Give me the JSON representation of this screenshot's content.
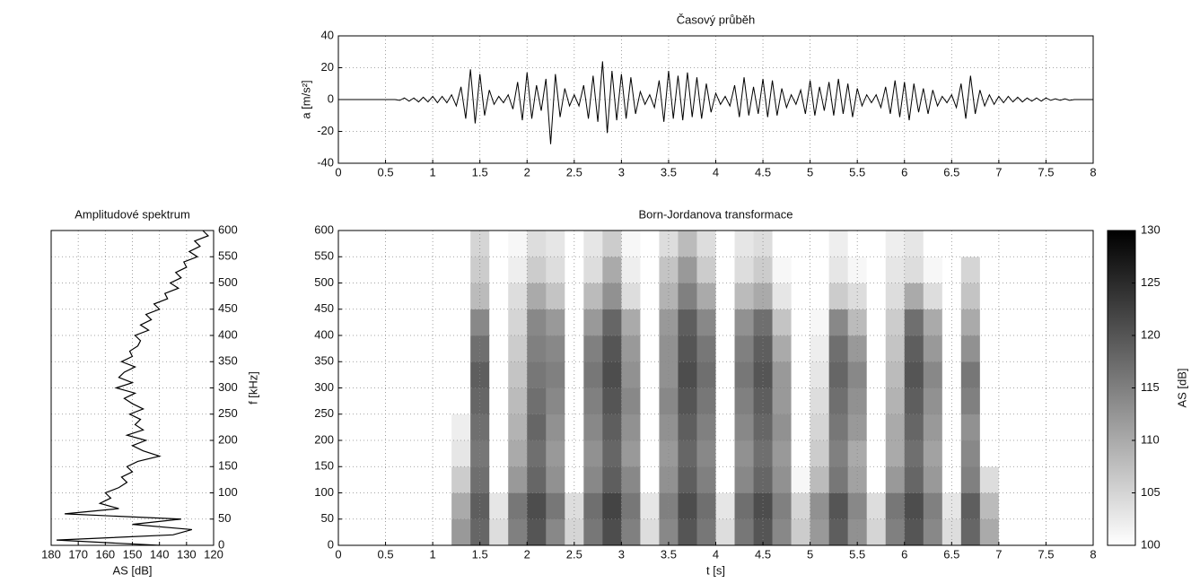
{
  "chart_data": [
    {
      "type": "line",
      "title": "Časový průběh",
      "y_label": "a [m/s²]",
      "color": "#000000",
      "grid": true,
      "xlim": [
        0,
        8
      ],
      "xticks": [
        0,
        0.5,
        1,
        1.5,
        2,
        2.5,
        3,
        3.5,
        4,
        4.5,
        5,
        5.5,
        6,
        6.5,
        7,
        7.5,
        8
      ],
      "ylim": [
        -40,
        40
      ],
      "yticks": [
        -40,
        -20,
        0,
        20,
        40
      ],
      "x": [
        0,
        0.05,
        0.1,
        0.15,
        0.2,
        0.25,
        0.3,
        0.35,
        0.4,
        0.45,
        0.5,
        0.55,
        0.6,
        0.65,
        0.7,
        0.75,
        0.8,
        0.85,
        0.9,
        0.95,
        1,
        1.05,
        1.1,
        1.15,
        1.2,
        1.25,
        1.3,
        1.35,
        1.4,
        1.45,
        1.5,
        1.55,
        1.6,
        1.65,
        1.7,
        1.75,
        1.8,
        1.85,
        1.9,
        1.95,
        2,
        2.05,
        2.1,
        2.15,
        2.2,
        2.25,
        2.3,
        2.35,
        2.4,
        2.45,
        2.5,
        2.55,
        2.6,
        2.65,
        2.7,
        2.75,
        2.8,
        2.85,
        2.9,
        2.95,
        3,
        3.05,
        3.1,
        3.15,
        3.2,
        3.25,
        3.3,
        3.35,
        3.4,
        3.45,
        3.5,
        3.55,
        3.6,
        3.65,
        3.7,
        3.75,
        3.8,
        3.85,
        3.9,
        3.95,
        4,
        4.05,
        4.1,
        4.15,
        4.2,
        4.25,
        4.3,
        4.35,
        4.4,
        4.45,
        4.5,
        4.55,
        4.6,
        4.65,
        4.7,
        4.75,
        4.8,
        4.85,
        4.9,
        4.95,
        5,
        5.05,
        5.1,
        5.15,
        5.2,
        5.25,
        5.3,
        5.35,
        5.4,
        5.45,
        5.5,
        5.55,
        5.6,
        5.65,
        5.7,
        5.75,
        5.8,
        5.85,
        5.9,
        5.95,
        6,
        6.05,
        6.1,
        6.15,
        6.2,
        6.25,
        6.3,
        6.35,
        6.4,
        6.45,
        6.5,
        6.55,
        6.6,
        6.65,
        6.7,
        6.75,
        6.8,
        6.85,
        6.9,
        6.95,
        7,
        7.05,
        7.1,
        7.15,
        7.2,
        7.25,
        7.3,
        7.35,
        7.4,
        7.45,
        7.5,
        7.55,
        7.6,
        7.65,
        7.7,
        7.75,
        7.8,
        7.85,
        7.9,
        7.95,
        8
      ],
      "values": [
        0,
        0,
        0,
        0,
        0,
        0,
        0,
        0,
        0,
        0,
        0,
        0,
        0,
        -0.5,
        1,
        -1,
        1,
        -1.5,
        1.5,
        -1.5,
        2,
        -2,
        2,
        -2,
        3,
        -4,
        8,
        -12,
        19,
        -15,
        16,
        -10,
        6,
        -3,
        2,
        -2,
        3,
        -6,
        11,
        -13,
        17,
        -12,
        9,
        -7,
        13,
        -28,
        16,
        -11,
        7,
        -4,
        3,
        -4,
        9,
        -12,
        15,
        -14,
        24,
        -21,
        18,
        -13,
        16,
        -12,
        14,
        -9,
        5,
        -3,
        3,
        -5,
        12,
        -14,
        18,
        -12,
        15,
        -13,
        17,
        -11,
        14,
        -12,
        10,
        -8,
        4,
        -3,
        2,
        -4,
        9,
        -11,
        14,
        -10,
        8,
        -9,
        13,
        -11,
        12,
        -10,
        7,
        -5,
        3,
        -3,
        6,
        -9,
        12,
        -10,
        8,
        -7,
        11,
        -10,
        13,
        -9,
        10,
        -11,
        7,
        -4,
        3,
        -2,
        3,
        -5,
        8,
        -9,
        12,
        -11,
        11,
        -13,
        10,
        -8,
        7,
        -9,
        6,
        -4,
        2,
        -2,
        3,
        -5,
        10,
        -12,
        15,
        -9,
        6,
        -4,
        3,
        -3,
        2,
        -2,
        2,
        -1.5,
        1.5,
        -1.5,
        1,
        -1,
        1,
        -1,
        1,
        -0.5,
        0.5,
        -0.5,
        0.5,
        -0.5,
        0,
        0,
        0,
        0,
        0
      ]
    },
    {
      "type": "spectrum",
      "title": "Amplitudové spektrum",
      "x_label": "AS [dB]",
      "y_label": "f [kHz]",
      "color": "#000000",
      "grid": true,
      "xlim": [
        180,
        120
      ],
      "xticks": [
        180,
        170,
        160,
        150,
        140,
        130,
        120
      ],
      "ylim": [
        0,
        600
      ],
      "yticks": [
        0,
        50,
        100,
        150,
        200,
        250,
        300,
        350,
        400,
        450,
        500,
        550,
        600
      ],
      "frequency": [
        0,
        10,
        20,
        30,
        40,
        50,
        60,
        70,
        80,
        90,
        100,
        110,
        120,
        130,
        140,
        150,
        160,
        170,
        180,
        190,
        200,
        210,
        220,
        230,
        240,
        250,
        260,
        270,
        280,
        290,
        300,
        310,
        320,
        330,
        340,
        350,
        360,
        370,
        380,
        390,
        400,
        410,
        420,
        430,
        440,
        450,
        460,
        470,
        480,
        490,
        500,
        510,
        520,
        530,
        540,
        550,
        560,
        570,
        580,
        590,
        600
      ],
      "values": [
        140,
        178,
        135,
        128,
        150,
        132,
        175,
        155,
        162,
        158,
        160,
        155,
        152,
        154,
        150,
        152,
        148,
        140,
        146,
        150,
        145,
        152,
        146,
        149,
        147,
        151,
        146,
        150,
        153,
        149,
        156,
        150,
        155,
        153,
        149,
        154,
        150,
        151,
        148,
        147,
        149,
        144,
        147,
        143,
        145,
        140,
        142,
        137,
        138,
        133,
        136,
        132,
        134,
        130,
        131,
        126,
        129,
        125,
        127,
        122,
        124
      ]
    },
    {
      "type": "heatmap",
      "title": "Born-Jordanova transformace",
      "x_label": "t [s]",
      "grid": true,
      "xlim": [
        0,
        8
      ],
      "xticks": [
        0,
        0.5,
        1,
        1.5,
        2,
        2.5,
        3,
        3.5,
        4,
        4.5,
        5,
        5.5,
        6,
        6.5,
        7,
        7.5,
        8
      ],
      "ylim": [
        0,
        600
      ],
      "yticks": [
        0,
        50,
        100,
        150,
        200,
        250,
        300,
        350,
        400,
        450,
        500,
        550,
        600
      ],
      "x_bins": [
        0,
        0.2,
        0.4,
        0.6,
        0.8,
        1,
        1.2,
        1.4,
        1.6,
        1.8,
        2,
        2.2,
        2.4,
        2.6,
        2.8,
        3,
        3.2,
        3.4,
        3.6,
        3.8,
        4,
        4.2,
        4.4,
        4.6,
        4.8,
        5,
        5.2,
        5.4,
        5.6,
        5.8,
        6,
        6.2,
        6.4,
        6.6,
        6.8,
        7,
        7.2,
        7.4,
        7.6,
        7.8,
        8
      ],
      "y_bins": [
        0,
        50,
        100,
        150,
        200,
        250,
        300,
        350,
        400,
        450,
        500,
        550,
        600
      ],
      "z": [
        [
          100,
          100,
          100,
          100,
          100,
          100,
          112,
          118,
          104,
          115,
          120,
          114,
          105,
          116,
          121,
          115,
          104,
          114,
          120,
          116,
          104,
          116,
          120,
          114,
          106,
          112,
          119,
          113,
          105,
          115,
          120,
          114,
          104,
          118,
          110,
          100,
          100,
          100,
          100,
          100
        ],
        [
          100,
          100,
          100,
          100,
          100,
          100,
          110,
          119,
          103,
          116,
          121,
          116,
          104,
          117,
          122,
          116,
          103,
          115,
          121,
          117,
          103,
          117,
          121,
          115,
          105,
          113,
          120,
          114,
          104,
          116,
          121,
          115,
          103,
          119,
          108,
          100,
          100,
          100,
          100,
          100
        ],
        [
          100,
          100,
          100,
          100,
          100,
          100,
          106,
          117,
          100,
          112,
          118,
          113,
          100,
          114,
          119,
          114,
          100,
          113,
          119,
          115,
          100,
          114,
          118,
          113,
          101,
          108,
          116,
          111,
          100,
          112,
          118,
          112,
          100,
          115,
          104,
          100,
          100,
          100,
          100,
          100
        ],
        [
          100,
          100,
          100,
          100,
          100,
          100,
          103,
          116,
          100,
          110,
          117,
          112,
          100,
          113,
          118,
          112,
          100,
          112,
          118,
          114,
          100,
          113,
          117,
          112,
          100,
          106,
          115,
          110,
          100,
          110,
          117,
          111,
          100,
          114,
          100,
          100,
          100,
          100,
          100,
          100
        ],
        [
          100,
          100,
          100,
          100,
          100,
          100,
          102,
          117,
          100,
          109,
          118,
          113,
          100,
          114,
          119,
          113,
          100,
          113,
          119,
          115,
          100,
          114,
          118,
          113,
          100,
          105,
          116,
          112,
          100,
          110,
          118,
          112,
          100,
          113,
          100,
          100,
          100,
          100,
          100,
          100
        ],
        [
          100,
          100,
          100,
          100,
          100,
          100,
          100,
          118,
          100,
          108,
          117,
          114,
          100,
          115,
          120,
          114,
          100,
          114,
          120,
          116,
          100,
          115,
          119,
          112,
          100,
          104,
          117,
          113,
          100,
          109,
          119,
          113,
          100,
          115,
          100,
          100,
          100,
          100,
          100,
          100
        ],
        [
          100,
          100,
          100,
          100,
          100,
          100,
          100,
          119,
          100,
          107,
          116,
          115,
          100,
          116,
          121,
          113,
          100,
          113,
          121,
          117,
          100,
          116,
          120,
          112,
          100,
          103,
          118,
          114,
          100,
          108,
          120,
          114,
          100,
          116,
          100,
          100,
          100,
          100,
          100,
          100
        ],
        [
          100,
          100,
          100,
          100,
          100,
          100,
          100,
          117,
          100,
          106,
          115,
          114,
          100,
          115,
          120,
          112,
          100,
          113,
          120,
          116,
          100,
          115,
          119,
          110,
          100,
          102,
          117,
          112,
          100,
          107,
          119,
          112,
          100,
          113,
          100,
          100,
          100,
          100,
          100,
          100
        ],
        [
          100,
          100,
          100,
          100,
          100,
          100,
          100,
          114,
          100,
          105,
          114,
          112,
          100,
          112,
          118,
          110,
          100,
          112,
          119,
          114,
          100,
          113,
          117,
          107,
          100,
          101,
          114,
          108,
          100,
          106,
          117,
          110,
          100,
          110,
          100,
          100,
          100,
          100,
          100,
          100
        ],
        [
          100,
          100,
          100,
          100,
          100,
          100,
          100,
          108,
          100,
          104,
          110,
          107,
          100,
          108,
          113,
          104,
          100,
          109,
          115,
          110,
          100,
          108,
          110,
          103,
          100,
          100,
          106,
          104,
          100,
          104,
          110,
          104,
          100,
          107,
          100,
          100,
          100,
          100,
          100,
          100
        ],
        [
          100,
          100,
          100,
          100,
          100,
          100,
          100,
          106,
          100,
          102,
          106,
          104,
          100,
          104,
          110,
          102,
          100,
          107,
          112,
          106,
          100,
          104,
          106,
          101,
          100,
          100,
          103,
          101,
          100,
          103,
          104,
          101,
          100,
          105,
          100,
          100,
          100,
          100,
          100,
          100
        ],
        [
          100,
          100,
          100,
          100,
          100,
          100,
          100,
          105,
          100,
          101,
          104,
          103,
          100,
          103,
          106,
          101,
          100,
          104,
          108,
          104,
          100,
          103,
          104,
          100,
          100,
          100,
          102,
          100,
          100,
          102,
          103,
          100,
          100,
          100,
          100,
          100,
          100,
          100,
          100,
          100
        ]
      ],
      "colorbar": {
        "label": "AS [dB]",
        "lim": [
          100,
          130
        ],
        "ticks": [
          100,
          105,
          110,
          115,
          120,
          125,
          130
        ],
        "colors": [
          "#ffffff",
          "#000000"
        ]
      }
    }
  ]
}
